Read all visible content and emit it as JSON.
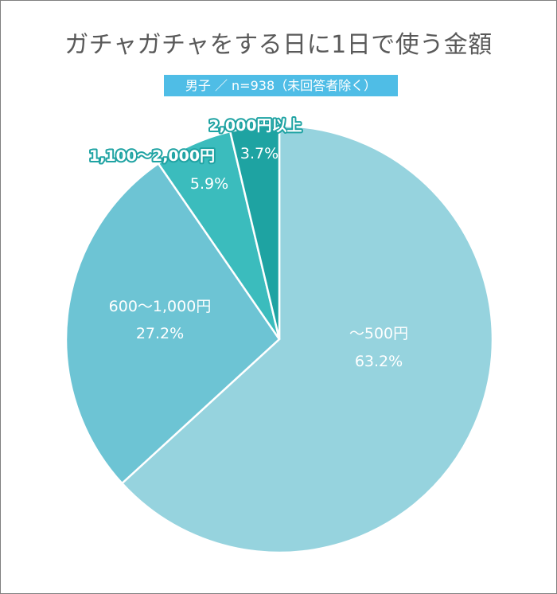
{
  "chart_data": {
    "type": "pie",
    "title": "ガチャガチャをする日に1日で使う金額",
    "subtitle": "男子 ／ n=938（未回答者除く）",
    "start_angle_deg": 0,
    "direction": "clockwise",
    "slices": [
      {
        "label": "～500円",
        "value": 63.2,
        "pct_text": "63.2%",
        "color": "#96d3de"
      },
      {
        "label": "600～1,000円",
        "value": 27.2,
        "pct_text": "27.2%",
        "color": "#6dc4d4"
      },
      {
        "label": "1,100～2,000円",
        "value": 5.9,
        "pct_text": "5.9%",
        "color": "#3bbcbd"
      },
      {
        "label": "2,000円以上",
        "value": 3.7,
        "pct_text": "3.7%",
        "color": "#1ea3a2"
      }
    ]
  }
}
